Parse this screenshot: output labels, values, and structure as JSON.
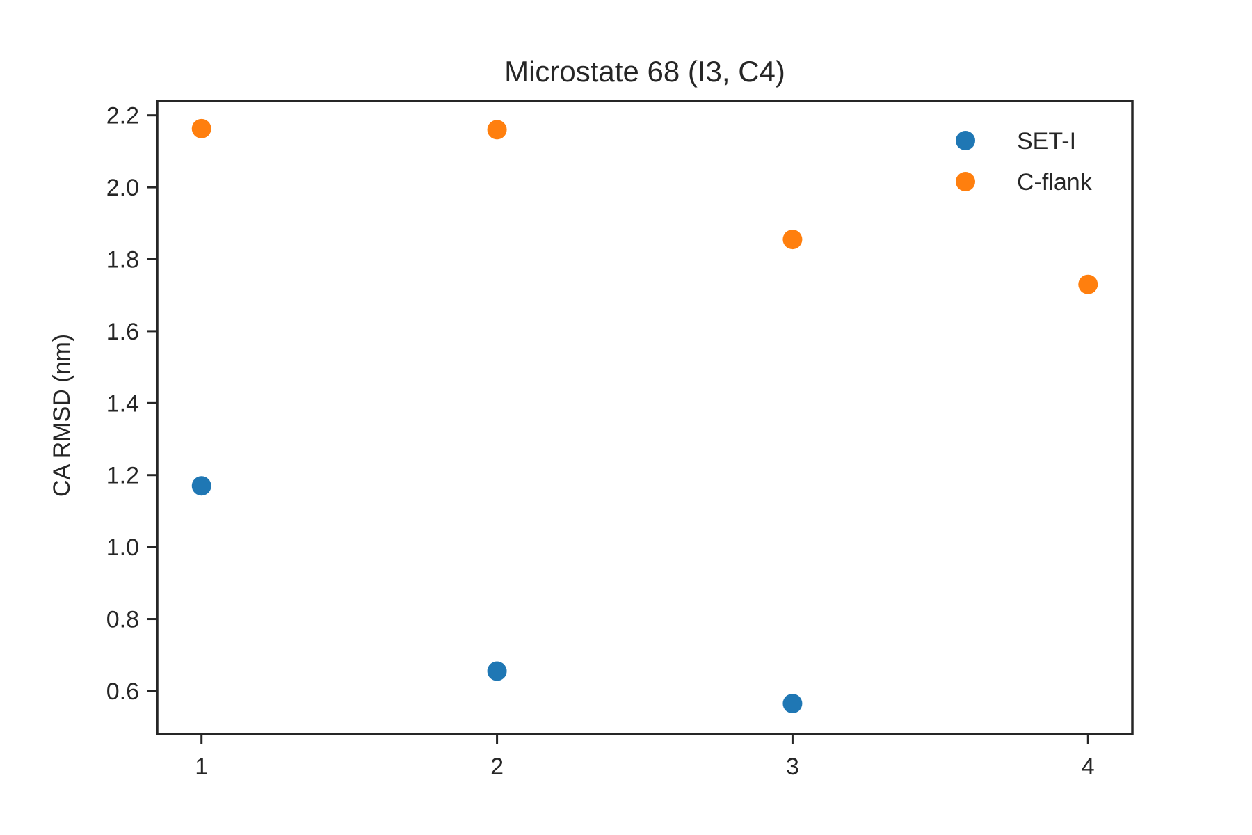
{
  "chart_data": {
    "type": "scatter",
    "title": "Microstate 68 (I3, C4)",
    "xlabel": "",
    "ylabel": "CA RMSD (nm)",
    "xlim": [
      0.85,
      4.15
    ],
    "ylim": [
      0.48,
      2.24
    ],
    "xticks": [
      1,
      2,
      3,
      4
    ],
    "yticks": [
      0.6,
      0.8,
      1.0,
      1.2,
      1.4,
      1.6,
      1.8,
      2.0,
      2.2
    ],
    "grid": false,
    "legend_position": "top-right",
    "series": [
      {
        "name": "SET-I",
        "color": "#1f77b4",
        "points": [
          {
            "x": 1,
            "y": 1.17
          },
          {
            "x": 2,
            "y": 0.655
          },
          {
            "x": 3,
            "y": 0.565
          }
        ]
      },
      {
        "name": "C-flank",
        "color": "#ff7f0e",
        "points": [
          {
            "x": 1,
            "y": 2.163
          },
          {
            "x": 2,
            "y": 2.16
          },
          {
            "x": 3,
            "y": 1.855
          },
          {
            "x": 4,
            "y": 1.73
          }
        ]
      }
    ]
  }
}
